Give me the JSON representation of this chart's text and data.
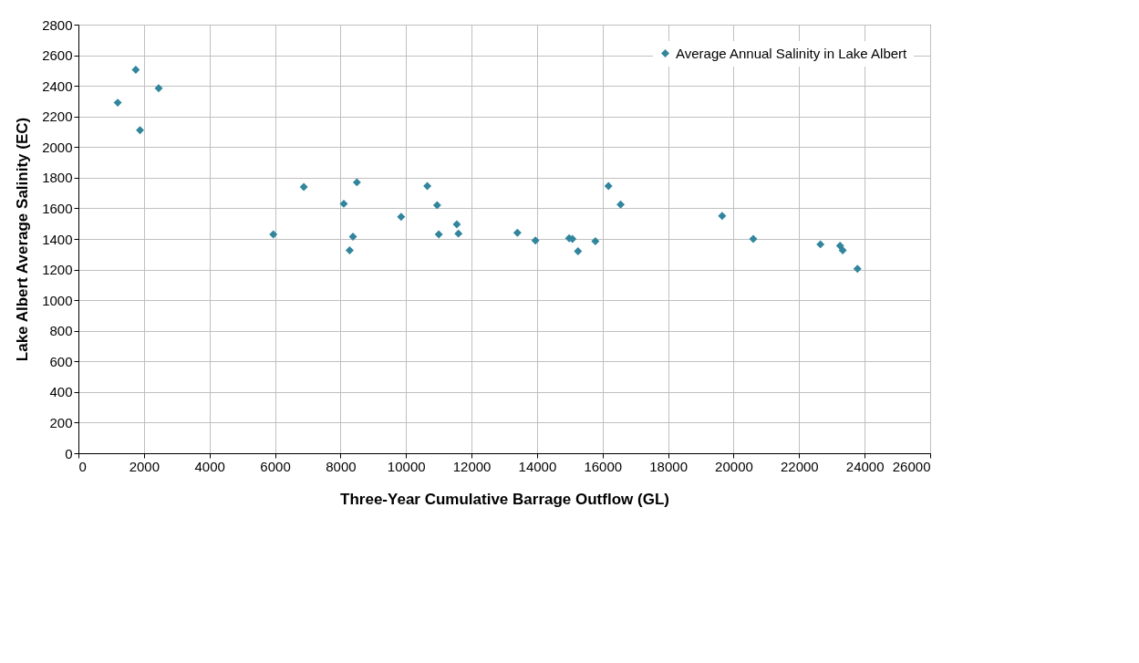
{
  "chart_data": {
    "type": "scatter",
    "xlabel": "Three-Year Cumulative Barrage Outflow (GL)",
    "ylabel": "Lake Albert Average Salinity (EC)",
    "x": [
      1200,
      1750,
      1880,
      2450,
      5950,
      6880,
      8100,
      8280,
      8380,
      8500,
      9850,
      10650,
      10950,
      11000,
      11550,
      11600,
      13400,
      13950,
      14980,
      15080,
      15250,
      15780,
      16180,
      16550,
      19650,
      20600,
      22650,
      23250,
      23330,
      23780
    ],
    "series": [
      {
        "name": "Average Annual Salinity in Lake Albert",
        "color": "#31859c",
        "values": [
          2290,
          2505,
          2110,
          2385,
          1430,
          1740,
          1630,
          1325,
          1415,
          1770,
          1545,
          1745,
          1620,
          1430,
          1495,
          1435,
          1440,
          1390,
          1405,
          1400,
          1320,
          1385,
          1745,
          1625,
          1550,
          1400,
          1365,
          1355,
          1325,
          1205
        ]
      }
    ],
    "xlim": [
      0,
      26000
    ],
    "xticks": [
      0,
      2000,
      4000,
      6000,
      8000,
      10000,
      12000,
      14000,
      16000,
      18000,
      20000,
      22000,
      24000,
      26000
    ],
    "ylim": [
      0,
      2800
    ],
    "yticks": [
      0,
      200,
      400,
      600,
      800,
      1000,
      1200,
      1400,
      1600,
      1800,
      2000,
      2200,
      2400,
      2600,
      2800
    ],
    "grid": true,
    "legend": "top right",
    "marker": "diamond"
  }
}
